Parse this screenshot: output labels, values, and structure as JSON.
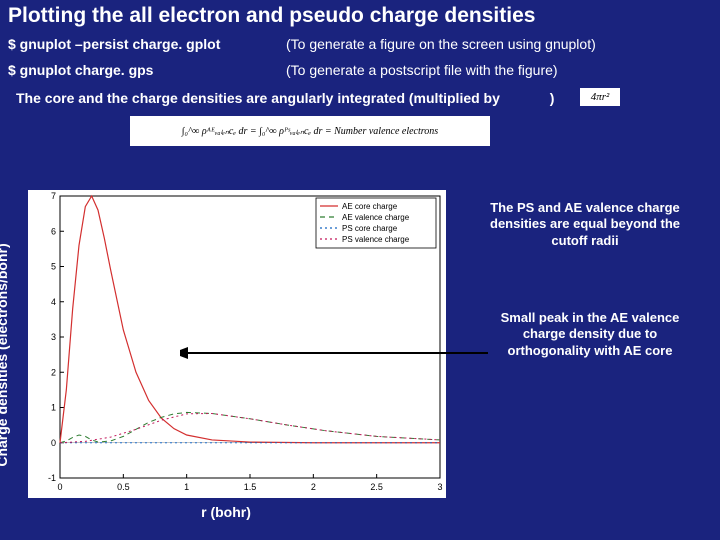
{
  "colors": {
    "background": "#1a237e",
    "text": "#ffffff",
    "equation_bg": "#ffffff",
    "equation_fg": "#000000",
    "plot_bg": "#ffffff",
    "axis": "#000000",
    "arrow": "#000000"
  },
  "title": "Plotting the all electron and pseudo charge densities",
  "commands": [
    {
      "cmd": "$ gnuplot –persist charge. gplot",
      "desc": "(To generate a figure on the screen using gnuplot)"
    },
    {
      "cmd": "$ gnuplot charge. gps",
      "desc": "(To generate a postscript file with the figure)"
    }
  ],
  "integration_line_a": "The core and the charge densities are angularly integrated (multiplied by",
  "integration_line_b": ")",
  "eq_small": "4πr²",
  "eq_main": "∫₀^∞ ρᴬᴱᵥₐₗₑₙcₑ dr = ∫₀^∞ ρᴾˢᵥₐₗₑₙcₑ dr = Number valence electrons",
  "annotations": {
    "a": "The PS and AE valence charge densities are equal beyond the cutoff radii",
    "b": "Small peak in the AE valence charge density due to orthogonality with AE core"
  },
  "chart": {
    "type": "line",
    "xlabel": "r (bohr)",
    "ylabel": "Charge densities (electrons/bohr)",
    "background_color": "#ffffff",
    "axis_color": "#000000",
    "xlim": [
      0,
      3
    ],
    "ylim": [
      -1,
      7
    ],
    "xticks": [
      0,
      0.5,
      1,
      1.5,
      2,
      2.5,
      3
    ],
    "yticks": [
      -1,
      0,
      1,
      2,
      3,
      4,
      5,
      6,
      7
    ],
    "tick_fontsize": 9,
    "tick_color": "#000000",
    "legend": {
      "position": "top-right",
      "fontsize": 8,
      "border_color": "#000000",
      "items": [
        {
          "label": "AE core charge",
          "color": "#d32f2f",
          "dash": "solid"
        },
        {
          "label": "AE valence charge",
          "color": "#2e7d32",
          "dash": "dash"
        },
        {
          "label": "PS core charge",
          "color": "#1565c0",
          "dash": "dot"
        },
        {
          "label": "PS valence charge",
          "color": "#c2185b",
          "dash": "dot"
        }
      ]
    },
    "series": [
      {
        "name": "AE core charge",
        "color": "#d32f2f",
        "dash": "solid",
        "width": 1.2,
        "x": [
          0,
          0.05,
          0.1,
          0.15,
          0.2,
          0.25,
          0.3,
          0.35,
          0.4,
          0.5,
          0.6,
          0.7,
          0.8,
          0.9,
          1.0,
          1.2,
          1.5,
          2.0,
          3.0
        ],
        "y": [
          0,
          1.5,
          3.8,
          5.6,
          6.7,
          7.0,
          6.6,
          5.8,
          4.9,
          3.2,
          2.0,
          1.2,
          0.7,
          0.4,
          0.22,
          0.08,
          0.02,
          0.0,
          0.0
        ]
      },
      {
        "name": "AE valence charge",
        "color": "#2e7d32",
        "dash": "dash",
        "width": 1.0,
        "x": [
          0,
          0.05,
          0.1,
          0.15,
          0.2,
          0.25,
          0.3,
          0.4,
          0.5,
          0.6,
          0.7,
          0.8,
          0.9,
          1.0,
          1.2,
          1.5,
          1.8,
          2.1,
          2.5,
          3.0
        ],
        "y": [
          0,
          0.05,
          0.15,
          0.22,
          0.18,
          0.08,
          0.02,
          0.05,
          0.18,
          0.38,
          0.58,
          0.72,
          0.82,
          0.86,
          0.83,
          0.68,
          0.5,
          0.34,
          0.18,
          0.08
        ]
      },
      {
        "name": "PS core charge",
        "color": "#1565c0",
        "dash": "dot",
        "width": 1.0,
        "x": [
          0,
          3.0
        ],
        "y": [
          0,
          0
        ]
      },
      {
        "name": "PS valence charge",
        "color": "#c2185b",
        "dash": "dot",
        "width": 1.0,
        "x": [
          0,
          0.2,
          0.4,
          0.6,
          0.8,
          1.0,
          1.2,
          1.5,
          1.8,
          2.1,
          2.5,
          3.0
        ],
        "y": [
          0,
          0.04,
          0.16,
          0.38,
          0.64,
          0.82,
          0.83,
          0.68,
          0.5,
          0.34,
          0.18,
          0.08
        ]
      }
    ]
  }
}
